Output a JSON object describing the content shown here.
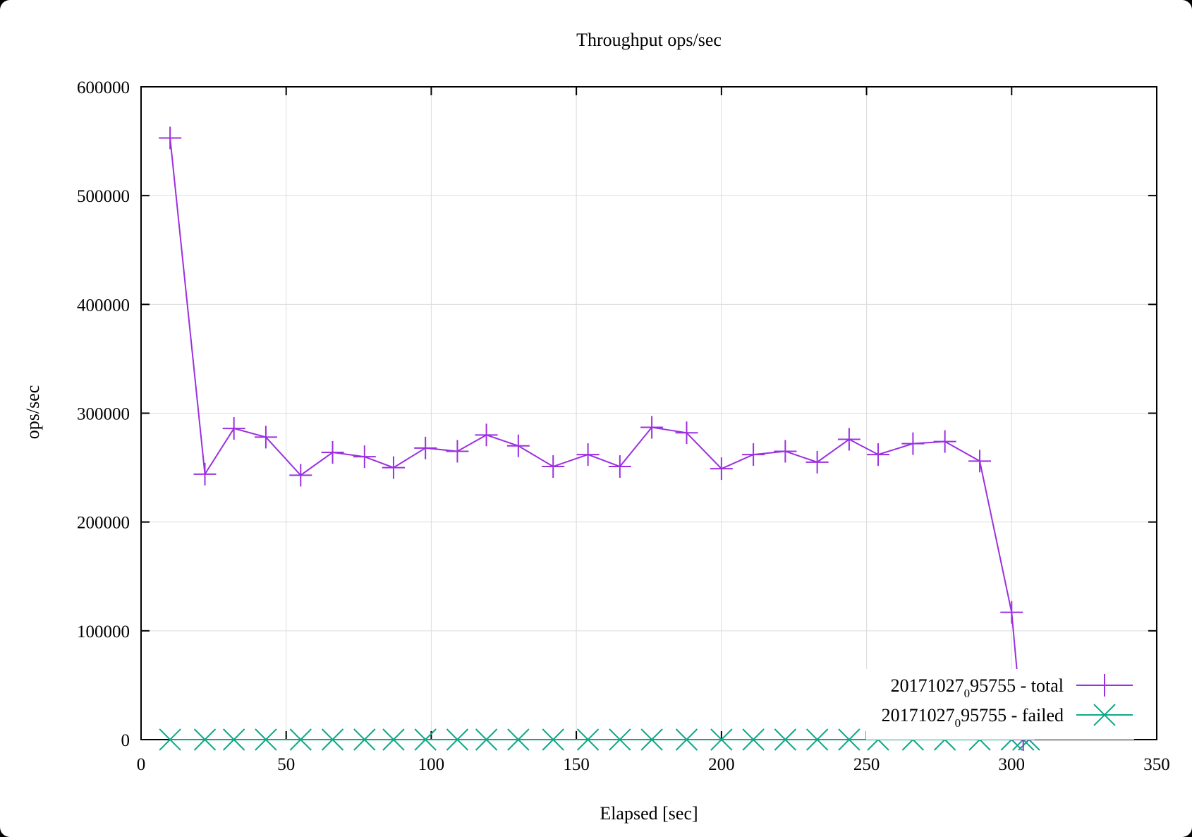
{
  "chart_data": {
    "type": "line",
    "title": "Throughput ops/sec",
    "xlabel": "Elapsed [sec]",
    "ylabel": "ops/sec",
    "xlim": [
      0,
      350
    ],
    "ylim": [
      0,
      600000
    ],
    "xticks": [
      0,
      50,
      100,
      150,
      200,
      250,
      300,
      350
    ],
    "yticks": [
      0,
      100000,
      200000,
      300000,
      400000,
      500000,
      600000
    ],
    "grid": true,
    "legend_position": "bottom-right",
    "series": [
      {
        "name_main": "20171027",
        "name_sub": "0",
        "name_rest": "95755 - total",
        "color": "#9b30e0",
        "marker": "plus",
        "x": [
          10,
          22,
          32,
          43,
          55,
          66,
          77,
          87,
          98,
          109,
          119,
          130,
          142,
          154,
          165,
          176,
          188,
          200,
          211,
          222,
          233,
          244,
          254,
          266,
          277,
          289,
          300,
          304
        ],
        "y": [
          553000,
          244000,
          286000,
          278000,
          243000,
          264000,
          260000,
          250000,
          268000,
          265000,
          280000,
          270000,
          251000,
          262000,
          251000,
          287000,
          282000,
          249000,
          262000,
          265000,
          255000,
          276000,
          262000,
          272000,
          274000,
          256000,
          117000,
          0
        ]
      },
      {
        "name_main": "20171027",
        "name_sub": "0",
        "name_rest": "95755 - failed",
        "color": "#10a887",
        "marker": "cross",
        "x": [
          10,
          22,
          32,
          43,
          55,
          66,
          77,
          87,
          98,
          109,
          119,
          130,
          142,
          154,
          165,
          176,
          188,
          200,
          211,
          222,
          233,
          244,
          254,
          266,
          277,
          289,
          300,
          304,
          306
        ],
        "y": [
          0,
          0,
          0,
          0,
          0,
          0,
          0,
          0,
          0,
          0,
          0,
          0,
          0,
          0,
          0,
          0,
          0,
          0,
          0,
          0,
          0,
          0,
          0,
          0,
          0,
          0,
          0,
          0,
          0
        ]
      }
    ]
  }
}
